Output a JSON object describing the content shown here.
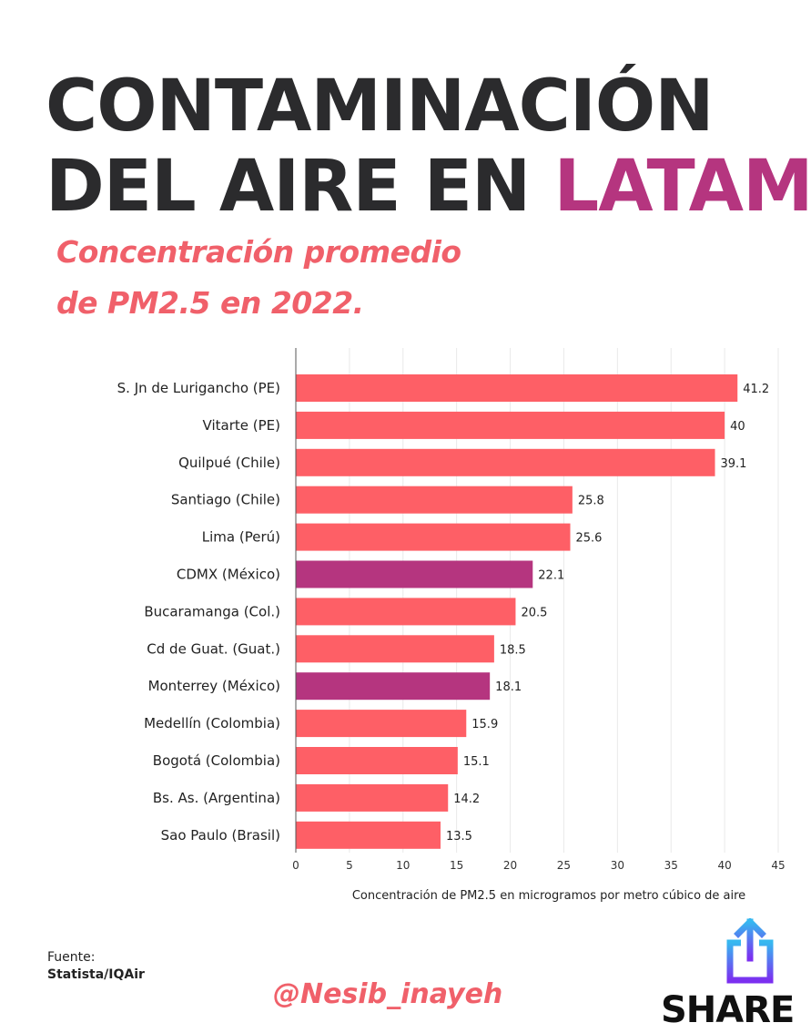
{
  "header": {
    "title_line1": "CONTAMINACIÓN",
    "title_line2_plain": "DEL AIRE EN ",
    "title_line2_accent": "LATAM",
    "subtitle_line1": "Concentración promedio",
    "subtitle_line2": "de PM2.5 en 2022."
  },
  "chart_data": {
    "type": "bar",
    "orientation": "horizontal",
    "categories": [
      "S. Jn de Lurigancho (PE)",
      "Vitarte (PE)",
      "Quilpué (Chile)",
      "Santiago (Chile)",
      "Lima (Perú)",
      "CDMX (México)",
      "Bucaramanga (Col.)",
      "Cd de Guat. (Guat.)",
      "Monterrey (México)",
      "Medellín (Colombia)",
      "Bogotá (Colombia)",
      "Bs. As. (Argentina)",
      "Sao Paulo (Brasil)"
    ],
    "values": [
      41.2,
      40,
      39.1,
      25.8,
      25.6,
      22.1,
      20.5,
      18.5,
      18.1,
      15.9,
      15.1,
      14.2,
      13.5
    ],
    "value_labels": [
      "41.2",
      "40",
      "39.1",
      "25.8",
      "25.6",
      "22.1",
      "20.5",
      "18.5",
      "18.1",
      "15.9",
      "15.1",
      "14.2",
      "13.5"
    ],
    "highlighted": [
      "CDMX (México)",
      "Monterrey (México)"
    ],
    "colors": {
      "default": "#fe5f66",
      "highlight": "#b5357f"
    },
    "xlabel": "Concentración de PM2.5 en microgramos por metro cúbico de aire",
    "ylabel": "",
    "xlim": [
      0,
      45
    ],
    "xticks": [
      0,
      5,
      10,
      15,
      20,
      25,
      30,
      35,
      40,
      45
    ],
    "grid": "vertical"
  },
  "footer": {
    "source_label": "Fuente:",
    "source_value": "Statista/IQAir",
    "handle": "@Nesib_inayeh",
    "share_label": "SHARE",
    "share_icon": "share-icon"
  }
}
